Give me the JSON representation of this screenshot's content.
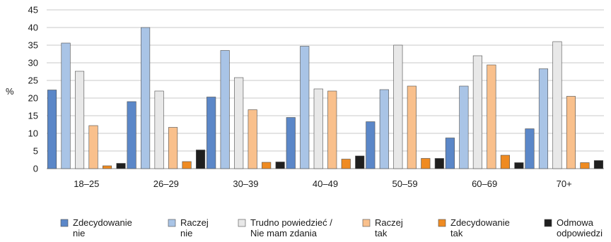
{
  "chart_data": {
    "type": "bar",
    "ylabel": "%",
    "ylim": [
      0,
      45
    ],
    "yticks": [
      0,
      5,
      10,
      15,
      20,
      25,
      30,
      35,
      40,
      45
    ],
    "grid": true,
    "legend_position": "bottom",
    "categories": [
      "18–25",
      "26–29",
      "30–39",
      "40–49",
      "50–59",
      "60–69",
      "70+"
    ],
    "series": [
      {
        "name": "Zdecydowanie nie",
        "label_lines": [
          "Zdecydowanie",
          "nie"
        ],
        "color": "#5b87c8",
        "values": [
          22.3,
          19,
          20.3,
          14.5,
          13.3,
          8.7,
          11.3
        ]
      },
      {
        "name": "Raczej nie",
        "label_lines": [
          "Raczej",
          "nie"
        ],
        "color": "#a9c4e6",
        "values": [
          35.6,
          40,
          33.5,
          34.7,
          22.4,
          23.4,
          28.3
        ]
      },
      {
        "name": "Trudno powiedzieć / Nie mam zdania",
        "label_lines": [
          "Trudno powiedzieć /",
          "Nie mam zdania"
        ],
        "color": "#e8e8e8",
        "values": [
          27.6,
          22,
          25.8,
          22.6,
          35,
          32,
          36
        ]
      },
      {
        "name": "Raczej tak",
        "label_lines": [
          "Raczej",
          "tak"
        ],
        "color": "#f9c08c",
        "values": [
          12.2,
          11.7,
          16.7,
          22,
          23.4,
          29.4,
          20.5
        ]
      },
      {
        "name": "Zdecydowanie tak",
        "label_lines": [
          "Zdecydowanie",
          "tak"
        ],
        "color": "#ef8b22",
        "values": [
          0.8,
          2,
          1.8,
          2.7,
          2.9,
          3.8,
          1.7
        ]
      },
      {
        "name": "Odmowa odpowiedzi",
        "label_lines": [
          "Odmowa",
          "odpowiedzi"
        ],
        "color": "#1f1f1f",
        "values": [
          1.5,
          5.3,
          1.9,
          3.6,
          2.9,
          1.7,
          2.3
        ]
      }
    ]
  }
}
